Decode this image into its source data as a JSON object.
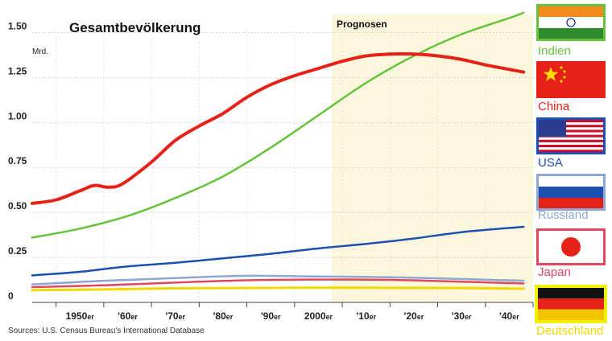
{
  "chart_data": {
    "type": "line",
    "title": "Gesamtbevölkerung",
    "ylabel": "Mrd.",
    "yticks": [
      "0",
      "0.25",
      "0.50",
      "0.75",
      "1.00",
      "1.25",
      "1.50"
    ],
    "ylim": [
      0,
      1.6
    ],
    "xlim": [
      1945,
      2050
    ],
    "xticks": [
      {
        "main": "1950",
        "suffix": "er",
        "x": 1955
      },
      {
        "main": "'60",
        "suffix": "er",
        "x": 1965
      },
      {
        "main": "'70",
        "suffix": "er",
        "x": 1975
      },
      {
        "main": "'80",
        "suffix": "er",
        "x": 1985
      },
      {
        "main": "'90",
        "suffix": "er",
        "x": 1995
      },
      {
        "main": "2000",
        "suffix": "er",
        "x": 2005
      },
      {
        "main": "'10",
        "suffix": "er",
        "x": 2015
      },
      {
        "main": "'20",
        "suffix": "er",
        "x": 2025
      },
      {
        "main": "'30",
        "suffix": "er",
        "x": 2035
      },
      {
        "main": "'40",
        "suffix": "er",
        "x": 2045
      }
    ],
    "forecast_label": "Prognosen",
    "forecast_start": 2010,
    "source": "Sources: U.S. Census Bureau's International Database",
    "series": [
      {
        "name": "Indien",
        "color": "#66c23a",
        "width": 2.5,
        "icon": "india-flag-icon",
        "points": [
          [
            1945,
            0.36
          ],
          [
            1955,
            0.41
          ],
          [
            1965,
            0.48
          ],
          [
            1975,
            0.58
          ],
          [
            1985,
            0.7
          ],
          [
            1995,
            0.86
          ],
          [
            2005,
            1.04
          ],
          [
            2015,
            1.22
          ],
          [
            2025,
            1.37
          ],
          [
            2035,
            1.49
          ],
          [
            2045,
            1.58
          ],
          [
            2048,
            1.61
          ]
        ]
      },
      {
        "name": "China",
        "color": "#e62117",
        "width": 4,
        "icon": "china-flag-icon",
        "points": [
          [
            1945,
            0.55
          ],
          [
            1950,
            0.57
          ],
          [
            1955,
            0.62
          ],
          [
            1958,
            0.65
          ],
          [
            1961,
            0.64
          ],
          [
            1964,
            0.66
          ],
          [
            1970,
            0.78
          ],
          [
            1975,
            0.9
          ],
          [
            1980,
            0.98
          ],
          [
            1985,
            1.05
          ],
          [
            1990,
            1.14
          ],
          [
            1995,
            1.21
          ],
          [
            2000,
            1.26
          ],
          [
            2005,
            1.3
          ],
          [
            2010,
            1.34
          ],
          [
            2015,
            1.37
          ],
          [
            2020,
            1.38
          ],
          [
            2025,
            1.38
          ],
          [
            2030,
            1.37
          ],
          [
            2035,
            1.35
          ],
          [
            2040,
            1.32
          ],
          [
            2048,
            1.28
          ]
        ]
      },
      {
        "name": "USA",
        "color": "#1c4fb0",
        "width": 2.5,
        "icon": "usa-flag-icon",
        "points": [
          [
            1945,
            0.15
          ],
          [
            1955,
            0.17
          ],
          [
            1965,
            0.2
          ],
          [
            1975,
            0.22
          ],
          [
            1985,
            0.245
          ],
          [
            1995,
            0.27
          ],
          [
            2005,
            0.3
          ],
          [
            2015,
            0.325
          ],
          [
            2025,
            0.355
          ],
          [
            2035,
            0.39
          ],
          [
            2048,
            0.42
          ]
        ]
      },
      {
        "name": "Russland",
        "color": "#8fa6d2",
        "width": 2.5,
        "icon": "russia-flag-icon",
        "points": [
          [
            1945,
            0.1
          ],
          [
            1960,
            0.12
          ],
          [
            1975,
            0.135
          ],
          [
            1990,
            0.148
          ],
          [
            2005,
            0.144
          ],
          [
            2020,
            0.14
          ],
          [
            2035,
            0.13
          ],
          [
            2048,
            0.12
          ]
        ]
      },
      {
        "name": "Japan",
        "color": "#e0475f",
        "width": 2.5,
        "icon": "japan-flag-icon",
        "points": [
          [
            1945,
            0.085
          ],
          [
            1960,
            0.095
          ],
          [
            1975,
            0.11
          ],
          [
            1990,
            0.123
          ],
          [
            2005,
            0.127
          ],
          [
            2020,
            0.125
          ],
          [
            2035,
            0.115
          ],
          [
            2048,
            0.105
          ]
        ]
      },
      {
        "name": "Deutschland",
        "color": "#f2d800",
        "width": 3,
        "icon": "germany-flag-icon",
        "points": [
          [
            1945,
            0.068
          ],
          [
            1960,
            0.072
          ],
          [
            1975,
            0.078
          ],
          [
            1990,
            0.08
          ],
          [
            2005,
            0.082
          ],
          [
            2020,
            0.081
          ],
          [
            2035,
            0.08
          ],
          [
            2048,
            0.076
          ]
        ]
      }
    ]
  }
}
